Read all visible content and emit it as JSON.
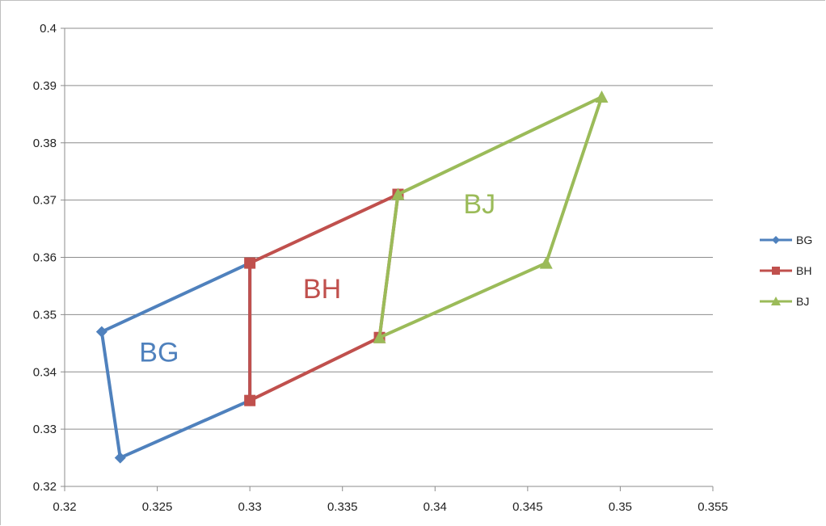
{
  "chart_data": {
    "type": "scatter",
    "title": "",
    "xlabel": "",
    "ylabel": "",
    "xlim": [
      0.32,
      0.355
    ],
    "ylim": [
      0.32,
      0.4
    ],
    "x_ticks": [
      "0.32",
      "0.325",
      "0.33",
      "0.335",
      "0.34",
      "0.345",
      "0.35",
      "0.355"
    ],
    "y_ticks": [
      "0.32",
      "0.33",
      "0.34",
      "0.35",
      "0.36",
      "0.37",
      "0.38",
      "0.39",
      "0.4"
    ],
    "grid": "horizontal",
    "legend_position": "right",
    "series": [
      {
        "name": "BG",
        "color": "#4f81bd",
        "marker": "diamond",
        "x": [
          0.322,
          0.323,
          0.33,
          0.33,
          0.322
        ],
        "y": [
          0.347,
          0.325,
          0.335,
          0.359,
          0.347
        ]
      },
      {
        "name": "BH",
        "color": "#c0504d",
        "marker": "square",
        "x": [
          0.33,
          0.33,
          0.337,
          0.338,
          0.33
        ],
        "y": [
          0.359,
          0.335,
          0.346,
          0.371,
          0.359
        ]
      },
      {
        "name": "BJ",
        "color": "#9bbb59",
        "marker": "triangle",
        "x": [
          0.338,
          0.337,
          0.346,
          0.349,
          0.338
        ],
        "y": [
          0.371,
          0.346,
          0.359,
          0.388,
          0.371
        ]
      }
    ],
    "annotations": [
      {
        "text": "BG",
        "x": 0.3251,
        "y": 0.3418,
        "color": "#4f81bd"
      },
      {
        "text": "BH",
        "x": 0.3339,
        "y": 0.3529,
        "color": "#c0504d"
      },
      {
        "text": "BJ",
        "x": 0.3424,
        "y": 0.3677,
        "color": "#9bbb59"
      }
    ]
  }
}
